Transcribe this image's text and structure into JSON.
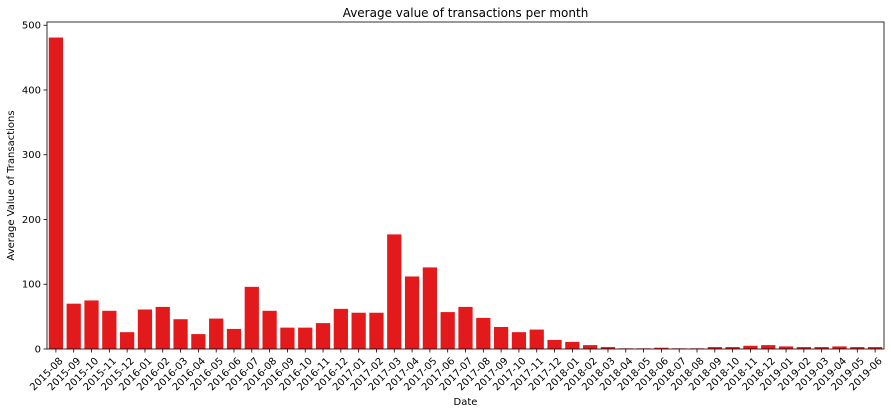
{
  "chart_data": {
    "type": "bar",
    "title": "Average value of transactions per month",
    "xlabel": "Date",
    "ylabel": "Average Value of Transactions",
    "ylim": [
      0,
      505
    ],
    "yticks": [
      0,
      100,
      200,
      300,
      400,
      500
    ],
    "grid": false,
    "bar_color": "#e31a1c",
    "categories": [
      "2015-08",
      "2015-09",
      "2015-10",
      "2015-11",
      "2015-12",
      "2016-01",
      "2016-02",
      "2016-03",
      "2016-04",
      "2016-05",
      "2016-06",
      "2016-07",
      "2016-08",
      "2016-09",
      "2016-10",
      "2016-11",
      "2016-12",
      "2017-01",
      "2017-02",
      "2017-03",
      "2017-04",
      "2017-05",
      "2017-06",
      "2017-07",
      "2017-08",
      "2017-09",
      "2017-10",
      "2017-11",
      "2017-12",
      "2018-01",
      "2018-02",
      "2018-03",
      "2018-04",
      "2018-05",
      "2018-06",
      "2018-07",
      "2018-08",
      "2018-09",
      "2018-10",
      "2018-11",
      "2018-12",
      "2019-01",
      "2019-02",
      "2019-03",
      "2019-04",
      "2019-05",
      "2019-06"
    ],
    "values": [
      481,
      70,
      75,
      59,
      26,
      61,
      65,
      46,
      23,
      47,
      31,
      96,
      59,
      33,
      33,
      40,
      62,
      56,
      56,
      177,
      112,
      126,
      57,
      65,
      48,
      34,
      26,
      30,
      14,
      11,
      6,
      3,
      1,
      1,
      2,
      1,
      1,
      3,
      3,
      5,
      6,
      4,
      3,
      3,
      4,
      3,
      3
    ]
  }
}
